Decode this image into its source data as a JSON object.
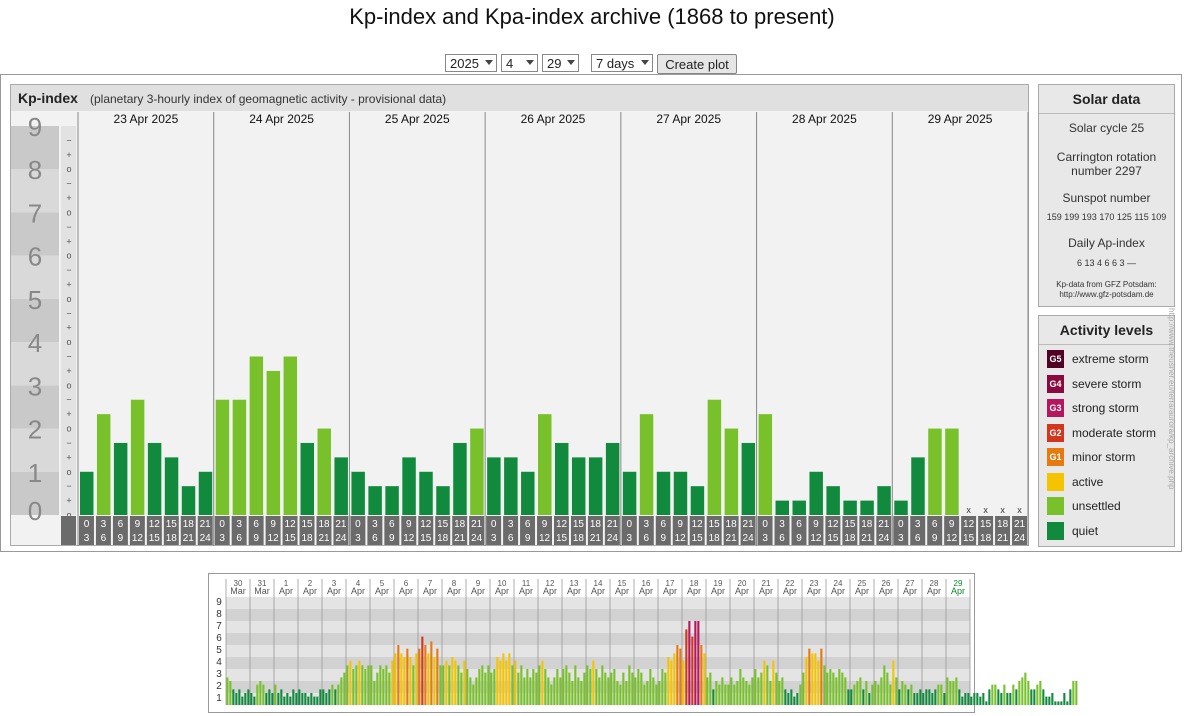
{
  "page_title": "Kp-index and Kpa-index archive (1868 to present)",
  "controls": {
    "year": "2025",
    "month": "4",
    "day": "29",
    "span": "7 days",
    "create_label": "Create plot"
  },
  "kp_panel": {
    "heading": "Kp-index",
    "subheading": "(planetary 3-hourly index of geomagnetic activity - provisional data)"
  },
  "chart_data": [
    {
      "type": "bar",
      "title": "Kp-index",
      "ylim": [
        0,
        9
      ],
      "y_ticks": [
        "0",
        "1",
        "2",
        "3",
        "4",
        "5",
        "6",
        "7",
        "8",
        "9"
      ],
      "minor_ticks": [
        "o",
        "+",
        "−"
      ],
      "days": [
        "23 Apr 2025",
        "24 Apr 2025",
        "25 Apr 2025",
        "26 Apr 2025",
        "27 Apr 2025",
        "28 Apr 2025",
        "29 Apr 2025"
      ],
      "hours_start": [
        "0",
        "3",
        "6",
        "9",
        "12",
        "15",
        "18",
        "21"
      ],
      "hours_end": [
        "3",
        "6",
        "9",
        "12",
        "15",
        "18",
        "21",
        "24"
      ],
      "values": [
        1.0,
        2.333,
        1.667,
        2.667,
        1.667,
        1.333,
        0.667,
        1.0,
        2.667,
        2.667,
        3.667,
        3.333,
        3.667,
        1.667,
        2.0,
        1.333,
        1.0,
        0.667,
        0.667,
        1.333,
        1.0,
        0.667,
        1.667,
        2.0,
        1.333,
        1.333,
        1.0,
        2.333,
        1.667,
        1.333,
        1.333,
        1.667,
        1.0,
        2.333,
        1.0,
        1.0,
        0.667,
        2.667,
        2.0,
        1.667,
        2.333,
        0.333,
        0.333,
        1.0,
        0.667,
        0.333,
        0.333,
        0.667,
        0.333,
        1.333,
        2.0,
        2.0,
        null,
        null,
        null,
        null
      ],
      "missing_marker": "x",
      "grid": true
    },
    {
      "type": "bar",
      "title": "",
      "ylim": [
        0,
        9
      ],
      "y_ticks": [
        "1",
        "2",
        "3",
        "4",
        "5",
        "6",
        "7",
        "8",
        "9"
      ],
      "day_top": [
        "30",
        "31",
        "1",
        "2",
        "3",
        "4",
        "5",
        "6",
        "7",
        "8",
        "9",
        "10",
        "11",
        "12",
        "13",
        "14",
        "15",
        "16",
        "17",
        "18",
        "19",
        "20",
        "21",
        "22",
        "23",
        "24",
        "25",
        "26",
        "27",
        "28",
        "29"
      ],
      "day_bottom": [
        "Mar",
        "Mar",
        "Apr",
        "Apr",
        "Apr",
        "Apr",
        "Apr",
        "Apr",
        "Apr",
        "Apr",
        "Apr",
        "Apr",
        "Apr",
        "Apr",
        "Apr",
        "Apr",
        "Apr",
        "Apr",
        "Apr",
        "Apr",
        "Apr",
        "Apr",
        "Apr",
        "Apr",
        "Apr",
        "Apr",
        "Apr",
        "Apr",
        "Apr",
        "Apr",
        "Apr"
      ],
      "values": [
        2.3,
        2.0,
        1.3,
        1.0,
        1.3,
        0.7,
        1.0,
        1.3,
        1.0,
        0.7,
        1.7,
        2.0,
        1.7,
        1.0,
        1.3,
        1.0,
        1.7,
        1.0,
        1.3,
        0.7,
        1.0,
        0.7,
        1.3,
        1.0,
        1.3,
        1.0,
        1.0,
        0.7,
        1.0,
        0.7,
        0.7,
        1.3,
        1.3,
        1.0,
        1.3,
        1.7,
        1.3,
        1.7,
        2.3,
        2.7,
        3.3,
        3.7,
        3.0,
        3.3,
        3.7,
        3.3,
        3.0,
        3.3,
        3.3,
        2.0,
        2.7,
        3.3,
        3.0,
        3.3,
        2.7,
        3.7,
        4.3,
        5.0,
        4.3,
        4.0,
        4.7,
        4.0,
        3.3,
        4.3,
        4.7,
        5.7,
        5.0,
        4.3,
        5.3,
        4.0,
        4.7,
        3.3,
        3.3,
        3.7,
        3.3,
        4.0,
        3.7,
        3.3,
        2.7,
        3.7,
        3.0,
        2.3,
        1.7,
        2.3,
        3.0,
        3.3,
        2.7,
        3.3,
        2.7,
        3.0,
        4.0,
        3.7,
        4.3,
        3.7,
        4.3,
        3.3,
        3.7,
        2.7,
        3.3,
        2.3,
        3.0,
        2.3,
        3.0,
        2.7,
        3.3,
        3.7,
        3.0,
        2.3,
        1.7,
        2.3,
        3.0,
        2.3,
        3.0,
        3.3,
        2.7,
        2.0,
        3.3,
        2.3,
        2.0,
        2.7,
        3.3,
        3.0,
        3.7,
        3.0,
        2.3,
        3.3,
        2.7,
        2.3,
        2.7,
        3.0,
        2.0,
        1.7,
        2.7,
        2.0,
        3.3,
        2.7,
        2.3,
        3.0,
        2.7,
        1.7,
        2.0,
        3.0,
        2.3,
        1.7,
        2.0,
        3.0,
        2.7,
        4.0,
        3.7,
        4.3,
        5.0,
        4.7,
        3.7,
        6.3,
        7.0,
        5.7,
        7.0,
        7.0,
        5.0,
        4.3,
        2.3,
        2.7,
        1.3,
        2.0,
        1.7,
        2.3,
        1.7,
        1.7,
        2.3,
        1.7,
        2.0,
        3.0,
        2.3,
        2.0,
        1.7,
        2.3,
        3.0,
        2.3,
        2.7,
        3.7,
        3.3,
        2.0,
        3.7,
        2.7,
        2.0,
        2.3,
        1.3,
        1.0,
        1.3,
        0.7,
        1.0,
        1.7,
        2.7,
        4.0,
        4.7,
        4.3,
        4.3,
        3.7,
        4.7,
        3.3,
        2.7,
        3.0,
        2.7,
        2.3,
        3.0,
        2.7,
        2.3,
        1.3,
        1.3,
        1.7,
        2.0,
        2.3,
        1.3,
        2.0,
        1.0,
        1.7,
        2.0,
        1.7,
        2.3,
        3.3,
        2.7,
        1.7,
        3.7,
        2.3,
        1.3,
        2.0,
        1.7,
        1.3,
        1.7,
        1.0,
        1.0,
        1.3,
        1.0,
        1.3,
        1.3,
        1.0,
        1.3,
        1.7,
        1.7,
        1.0,
        2.3,
        2.0,
        2.0,
        2.3,
        1.3,
        0.7,
        1.0,
        1.0,
        0.7,
        1.0,
        1.0,
        0.7,
        1.0,
        0.3,
        1.3,
        1.7,
        1.7,
        1.3,
        1.0,
        1.7,
        1.0,
        1.0,
        1.7,
        1.3,
        2.0,
        2.3,
        2.7,
        2.0,
        1.3,
        1.3,
        1.7,
        2.0,
        1.3,
        0.7,
        0.7,
        1.0,
        0.3,
        0.3,
        0.3,
        1.0,
        0.3,
        1.3,
        2.0,
        2.0
      ],
      "grid": true
    }
  ],
  "colors": {
    "quiet": "#128a3e",
    "unsettled": "#78c12a",
    "active": "#f5c400",
    "g1": "#e57b10",
    "g2": "#d2361c",
    "g3": "#b5165e",
    "g4": "#8a0a40",
    "g5": "#530025"
  },
  "solar": {
    "title": "Solar data",
    "cycle": "Solar cycle 25",
    "carrington_1": "Carrington rotation",
    "carrington_2": "number 2297",
    "sunspot_label": "Sunspot number",
    "sunspot_values": "159 199 193 170 125 115 109",
    "ap_label": "Daily Ap-index",
    "ap_values": "6   13   4   6   6   3   —",
    "credit_1": "Kp-data from GFZ Potsdam:",
    "credit_2": "http://www.gfz-potsdam.de"
  },
  "activity": {
    "title": "Activity levels",
    "levels": [
      {
        "code": "G5",
        "label": "extreme storm"
      },
      {
        "code": "G4",
        "label": "severe storm"
      },
      {
        "code": "G3",
        "label": "strong storm"
      },
      {
        "code": "G2",
        "label": "moderate storm"
      },
      {
        "code": "G1",
        "label": "minor storm"
      },
      {
        "code": "",
        "label": "active"
      },
      {
        "code": "",
        "label": "unsettled"
      },
      {
        "code": "",
        "label": "quiet"
      }
    ]
  },
  "watermark": "http://www.theusner.eu/terra/aurora/kp_archive.php"
}
